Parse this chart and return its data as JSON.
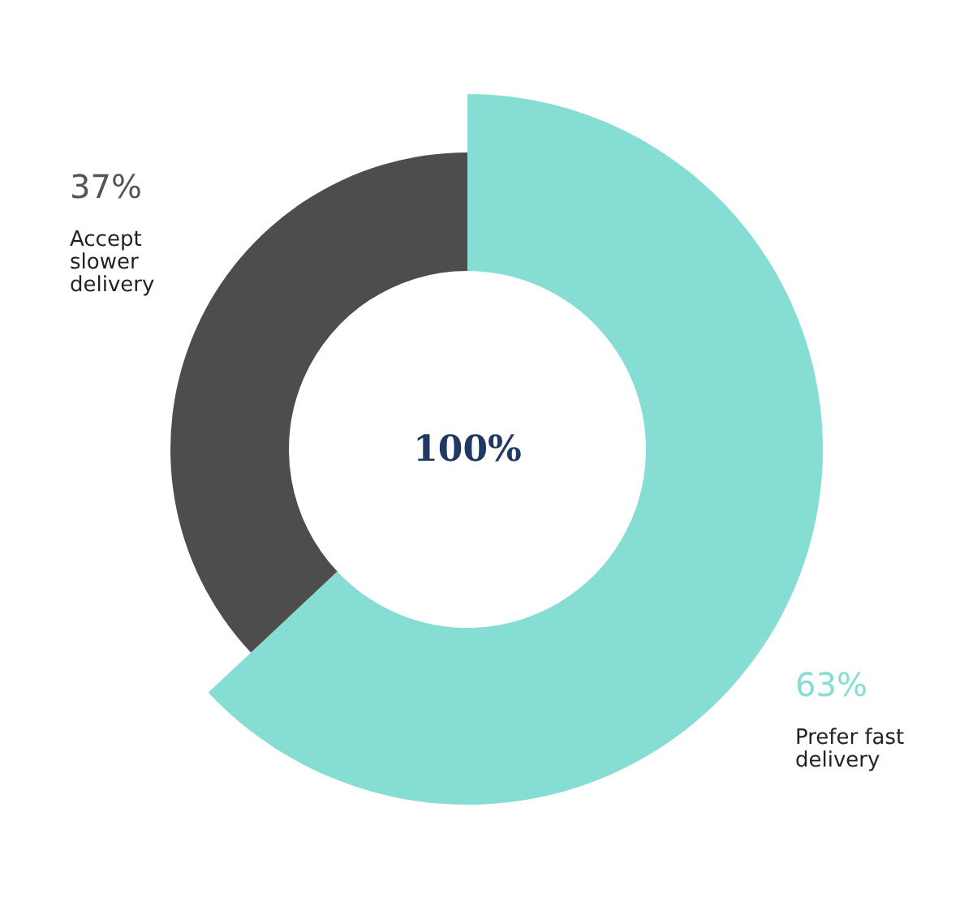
{
  "chart_data": {
    "type": "donut",
    "categories": [
      "Prefer fast delivery",
      "Accept slower delivery"
    ],
    "values": [
      63,
      37
    ],
    "value_labels": [
      "63%",
      "37%"
    ],
    "colors": [
      "#86ddd4",
      "#4d4d4d"
    ],
    "annotations": [
      "100%"
    ],
    "legend": false
  }
}
